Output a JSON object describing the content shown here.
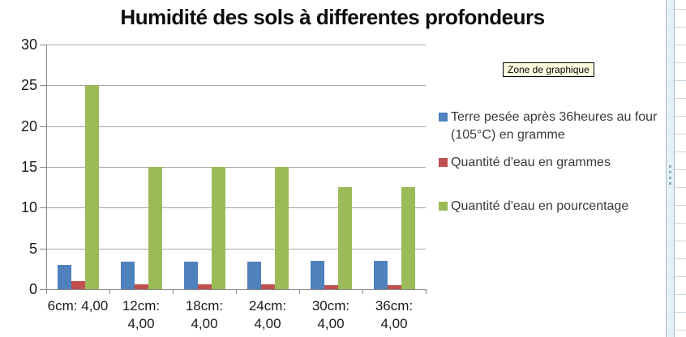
{
  "title": "Humidité des sols à differentes profondeurs",
  "tooltip": "Zone de graphique",
  "chart_data": {
    "type": "bar",
    "title": "Humidité des sols à differentes profondeurs",
    "categories": [
      "6cm: 4,00",
      "12cm: 4,00",
      "18cm: 4,00",
      "24cm: 4,00",
      "30cm: 4,00",
      "36cm: 4,00"
    ],
    "category_label_lines": [
      [
        "6cm: 4,00"
      ],
      [
        "12cm:",
        "4,00"
      ],
      [
        "18cm:",
        "4,00"
      ],
      [
        "24cm:",
        "4,00"
      ],
      [
        "30cm:",
        "4,00"
      ],
      [
        "36cm:",
        "4,00"
      ]
    ],
    "series": [
      {
        "name": "Terre pesée après 36heures au four (105°C) en gramme",
        "color": "#4F81BD",
        "values": [
          3.0,
          3.4,
          3.4,
          3.4,
          3.5,
          3.5
        ]
      },
      {
        "name": "Quantité d'eau en grammes",
        "color": "#C0504D",
        "values": [
          1.0,
          0.6,
          0.6,
          0.6,
          0.5,
          0.5
        ]
      },
      {
        "name": "Quantité d'eau en pourcentage",
        "color": "#9BBB59",
        "values": [
          25,
          15,
          15,
          15,
          12.5,
          12.5
        ]
      }
    ],
    "ylim": [
      0,
      30
    ],
    "yticks": [
      0,
      5,
      10,
      15,
      20,
      25,
      30
    ],
    "grid": true,
    "legend_position": "right",
    "xlabel": "",
    "ylabel": ""
  }
}
